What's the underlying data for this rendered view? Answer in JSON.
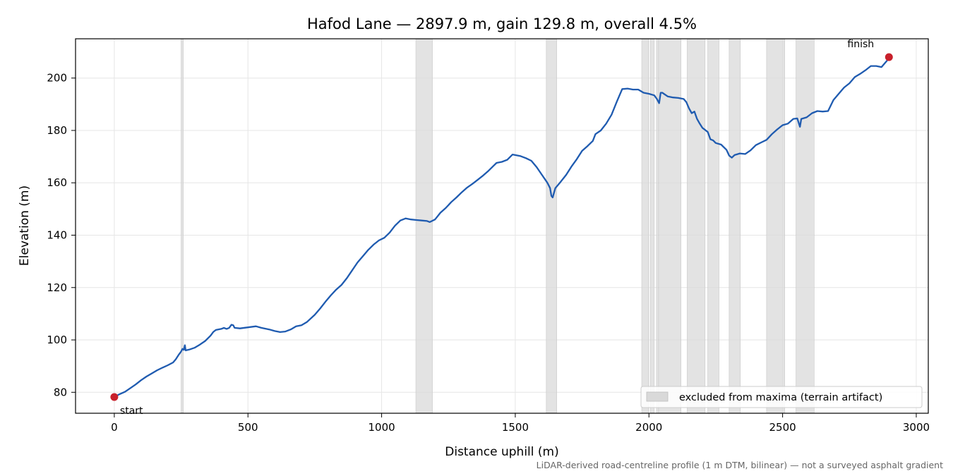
{
  "chart_data": {
    "type": "line",
    "title": "Hafod Lane — 2897.9 m, gain 129.8 m, overall 4.5%",
    "xlabel": "Distance uphill (m)",
    "ylabel": "Elevation (m)",
    "xlim": [
      -145,
      3045
    ],
    "ylim": [
      72,
      215
    ],
    "xticks": [
      0,
      500,
      1000,
      1500,
      2000,
      2500,
      3000
    ],
    "yticks": [
      80,
      100,
      120,
      140,
      160,
      180,
      200
    ],
    "grid": true,
    "colors": {
      "line": "#1f5bb0",
      "endpoint": "#c8202b",
      "excluded": "#d9d9d9"
    },
    "series": [
      {
        "points": [
          [
            0,
            78.2
          ],
          [
            20,
            79.3
          ],
          [
            40,
            80.2
          ],
          [
            60,
            81.6
          ],
          [
            80,
            83.0
          ],
          [
            100,
            84.6
          ],
          [
            120,
            86.0
          ],
          [
            140,
            87.2
          ],
          [
            160,
            88.4
          ],
          [
            180,
            89.4
          ],
          [
            200,
            90.3
          ],
          [
            220,
            91.4
          ],
          [
            230,
            92.6
          ],
          [
            240,
            94.2
          ],
          [
            250,
            95.6
          ],
          [
            255,
            96.6
          ],
          [
            260,
            96.2
          ],
          [
            264,
            98.0
          ],
          [
            267,
            96.0
          ],
          [
            280,
            96.3
          ],
          [
            300,
            97.0
          ],
          [
            320,
            98.2
          ],
          [
            340,
            99.6
          ],
          [
            360,
            101.6
          ],
          [
            370,
            103.0
          ],
          [
            380,
            103.8
          ],
          [
            400,
            104.2
          ],
          [
            410,
            104.6
          ],
          [
            420,
            104.2
          ],
          [
            430,
            104.6
          ],
          [
            438,
            105.8
          ],
          [
            445,
            105.6
          ],
          [
            450,
            104.6
          ],
          [
            470,
            104.4
          ],
          [
            500,
            104.8
          ],
          [
            530,
            105.2
          ],
          [
            550,
            104.6
          ],
          [
            580,
            104.0
          ],
          [
            600,
            103.4
          ],
          [
            620,
            103.0
          ],
          [
            640,
            103.2
          ],
          [
            660,
            104.0
          ],
          [
            680,
            105.2
          ],
          [
            700,
            105.6
          ],
          [
            720,
            106.8
          ],
          [
            750,
            109.6
          ],
          [
            770,
            112.0
          ],
          [
            790,
            114.6
          ],
          [
            810,
            117.0
          ],
          [
            830,
            119.2
          ],
          [
            850,
            121.0
          ],
          [
            870,
            123.6
          ],
          [
            890,
            126.6
          ],
          [
            910,
            129.6
          ],
          [
            930,
            132.0
          ],
          [
            950,
            134.4
          ],
          [
            970,
            136.4
          ],
          [
            990,
            138.0
          ],
          [
            1010,
            139.0
          ],
          [
            1030,
            141.0
          ],
          [
            1050,
            143.6
          ],
          [
            1070,
            145.6
          ],
          [
            1090,
            146.4
          ],
          [
            1110,
            146.0
          ],
          [
            1130,
            145.8
          ],
          [
            1150,
            145.6
          ],
          [
            1170,
            145.4
          ],
          [
            1180,
            145.0
          ],
          [
            1200,
            146.0
          ],
          [
            1220,
            148.6
          ],
          [
            1240,
            150.4
          ],
          [
            1260,
            152.6
          ],
          [
            1280,
            154.4
          ],
          [
            1300,
            156.4
          ],
          [
            1320,
            158.2
          ],
          [
            1340,
            159.6
          ],
          [
            1360,
            161.2
          ],
          [
            1380,
            162.8
          ],
          [
            1400,
            164.6
          ],
          [
            1420,
            166.6
          ],
          [
            1430,
            167.6
          ],
          [
            1450,
            168.0
          ],
          [
            1470,
            168.8
          ],
          [
            1490,
            170.8
          ],
          [
            1500,
            170.6
          ],
          [
            1520,
            170.2
          ],
          [
            1540,
            169.4
          ],
          [
            1560,
            168.4
          ],
          [
            1580,
            166.0
          ],
          [
            1600,
            163.0
          ],
          [
            1620,
            160.0
          ],
          [
            1630,
            158.0
          ],
          [
            1635,
            155.0
          ],
          [
            1640,
            154.4
          ],
          [
            1650,
            158.0
          ],
          [
            1670,
            160.4
          ],
          [
            1690,
            163.0
          ],
          [
            1710,
            166.2
          ],
          [
            1730,
            169.0
          ],
          [
            1750,
            172.2
          ],
          [
            1770,
            174.0
          ],
          [
            1790,
            176.0
          ],
          [
            1800,
            178.6
          ],
          [
            1820,
            180.0
          ],
          [
            1840,
            182.6
          ],
          [
            1860,
            186.0
          ],
          [
            1880,
            191.0
          ],
          [
            1900,
            195.8
          ],
          [
            1920,
            196.0
          ],
          [
            1940,
            195.6
          ],
          [
            1960,
            195.6
          ],
          [
            1980,
            194.4
          ],
          [
            2000,
            194.0
          ],
          [
            2020,
            193.4
          ],
          [
            2030,
            192.0
          ],
          [
            2038,
            190.4
          ],
          [
            2044,
            194.4
          ],
          [
            2050,
            194.4
          ],
          [
            2070,
            193.0
          ],
          [
            2090,
            192.6
          ],
          [
            2110,
            192.4
          ],
          [
            2130,
            192.0
          ],
          [
            2140,
            190.8
          ],
          [
            2150,
            188.4
          ],
          [
            2160,
            186.6
          ],
          [
            2170,
            187.2
          ],
          [
            2180,
            184.4
          ],
          [
            2190,
            182.6
          ],
          [
            2200,
            181.0
          ],
          [
            2210,
            180.2
          ],
          [
            2220,
            179.4
          ],
          [
            2230,
            176.6
          ],
          [
            2240,
            176.2
          ],
          [
            2250,
            175.2
          ],
          [
            2270,
            174.6
          ],
          [
            2290,
            172.6
          ],
          [
            2300,
            170.4
          ],
          [
            2310,
            169.6
          ],
          [
            2320,
            170.6
          ],
          [
            2340,
            171.2
          ],
          [
            2360,
            171.0
          ],
          [
            2380,
            172.4
          ],
          [
            2400,
            174.4
          ],
          [
            2420,
            175.4
          ],
          [
            2440,
            176.4
          ],
          [
            2460,
            178.6
          ],
          [
            2480,
            180.4
          ],
          [
            2500,
            182.0
          ],
          [
            2520,
            182.6
          ],
          [
            2540,
            184.4
          ],
          [
            2555,
            184.6
          ],
          [
            2565,
            181.4
          ],
          [
            2570,
            184.4
          ],
          [
            2590,
            185.0
          ],
          [
            2610,
            186.6
          ],
          [
            2630,
            187.4
          ],
          [
            2650,
            187.2
          ],
          [
            2670,
            187.4
          ],
          [
            2690,
            191.6
          ],
          [
            2710,
            194.0
          ],
          [
            2730,
            196.4
          ],
          [
            2750,
            198.0
          ],
          [
            2770,
            200.4
          ],
          [
            2790,
            201.6
          ],
          [
            2810,
            203.0
          ],
          [
            2830,
            204.6
          ],
          [
            2850,
            204.6
          ],
          [
            2870,
            204.2
          ],
          [
            2890,
            206.6
          ],
          [
            2897.9,
            208.0
          ]
        ]
      }
    ],
    "excluded_regions": [
      [
        250,
        258
      ],
      [
        1128,
        1190
      ],
      [
        1616,
        1655
      ],
      [
        1973,
        1998
      ],
      [
        2005,
        2020
      ],
      [
        2028,
        2035
      ],
      [
        2038,
        2120
      ],
      [
        2143,
        2210
      ],
      [
        2220,
        2262
      ],
      [
        2300,
        2342
      ],
      [
        2440,
        2508
      ],
      [
        2550,
        2618
      ]
    ],
    "endpoints": [
      {
        "label": "start",
        "x": 0,
        "y": 78.2
      },
      {
        "label": "finish",
        "x": 2897.9,
        "y": 208.0
      }
    ],
    "legend": {
      "label": "excluded from maxima (terrain artifact)",
      "placement": "lower-right"
    },
    "footnote": "LiDAR-derived road-centreline profile (1 m DTM, bilinear) — not a surveyed asphalt gradient"
  }
}
